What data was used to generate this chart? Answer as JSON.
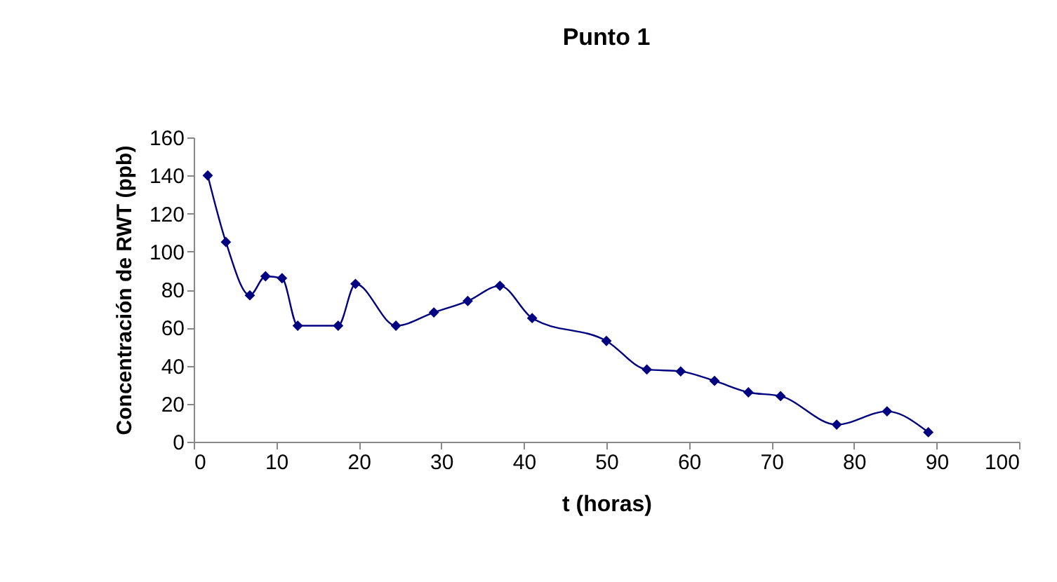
{
  "chart_data": {
    "type": "line",
    "title": "Punto 1",
    "xlabel": "t (horas)",
    "ylabel": "Concentración de RWT (ppb)",
    "x": [
      1.7,
      3.9,
      6.8,
      8.7,
      10.7,
      12.6,
      17.5,
      19.6,
      24.5,
      29.1,
      33.2,
      37.1,
      41,
      50,
      54.9,
      59,
      63.1,
      67.2,
      71.1,
      77.9,
      84,
      89
    ],
    "series": [
      {
        "color": "#000080",
        "values": [
          140,
          105,
          77,
          87,
          86,
          61,
          61,
          83,
          61,
          68,
          74,
          82,
          65,
          53,
          38,
          37,
          32,
          26,
          24,
          9,
          16,
          5
        ]
      }
    ],
    "xlim": [
      0,
      100
    ],
    "xticks": [
      0,
      10,
      20,
      30,
      40,
      50,
      60,
      70,
      80,
      90,
      100
    ],
    "ylim": [
      0,
      160
    ],
    "yticks": [
      0,
      20,
      40,
      60,
      80,
      100,
      120,
      140,
      160
    ],
    "grid": false,
    "marker": "diamond",
    "line_style": "solid"
  }
}
